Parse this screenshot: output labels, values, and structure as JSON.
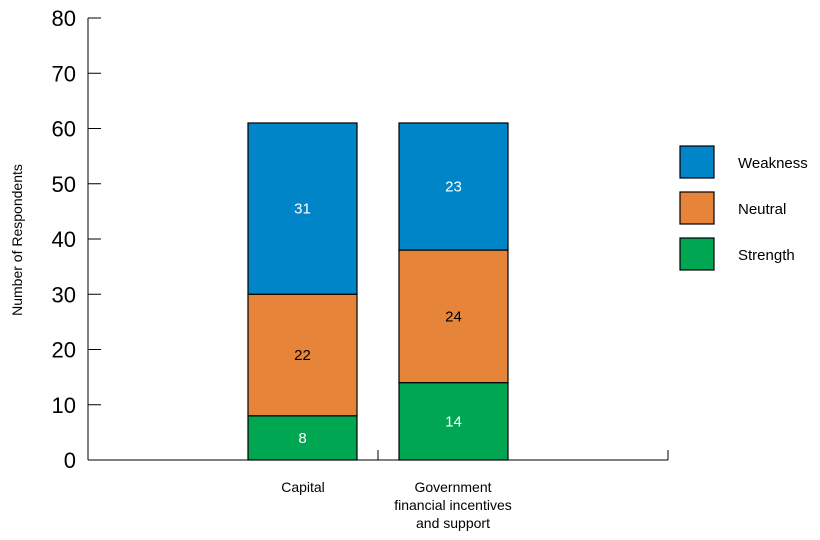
{
  "chart_data": {
    "type": "bar",
    "stacked": true,
    "title": "",
    "xlabel": "",
    "ylabel": "Number of Respondents",
    "ylim": [
      0,
      80
    ],
    "yticks": [
      0,
      10,
      20,
      30,
      40,
      50,
      60,
      70,
      80
    ],
    "categories": [
      [
        "Capital"
      ],
      [
        "Government",
        "financial incentives",
        "and support"
      ]
    ],
    "series": [
      {
        "name": "Strength",
        "color": "#00a651",
        "label_color": "#ffffff",
        "values": [
          8,
          14
        ]
      },
      {
        "name": "Neutral",
        "color": "#e6843a",
        "label_color": "#000000",
        "values": [
          22,
          24
        ]
      },
      {
        "name": "Weakness",
        "color": "#0085c8",
        "label_color": "#ffffff",
        "values": [
          31,
          23
        ]
      }
    ],
    "legend_order": [
      "Weakness",
      "Neutral",
      "Strength"
    ],
    "legend_position": "right",
    "grid": false
  }
}
